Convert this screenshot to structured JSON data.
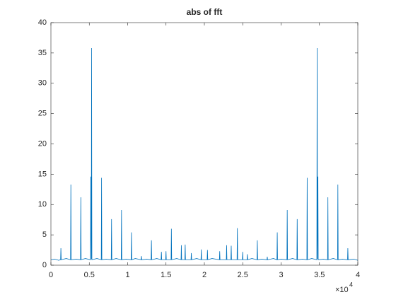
{
  "chart_data": {
    "type": "line",
    "title": "abs of fft",
    "x": [
      0,
      0.05,
      0.1,
      0.126,
      0.13,
      0.134,
      0.2,
      0.256,
      0.26,
      0.264,
      0.33,
      0.386,
      0.39,
      0.394,
      0.45,
      0.516,
      0.52,
      0.526,
      0.53,
      0.534,
      0.6,
      0.656,
      0.66,
      0.664,
      0.72,
      0.786,
      0.79,
      0.794,
      0.85,
      0.916,
      0.92,
      0.924,
      0.98,
      1.046,
      1.05,
      1.054,
      1.1,
      1.176,
      1.18,
      1.184,
      1.25,
      1.306,
      1.31,
      1.314,
      1.38,
      1.436,
      1.44,
      1.444,
      1.496,
      1.5,
      1.504,
      1.566,
      1.57,
      1.574,
      1.64,
      1.696,
      1.7,
      1.704,
      1.746,
      1.75,
      1.754,
      1.826,
      1.83,
      1.834,
      1.9,
      1.956,
      1.96,
      1.964,
      2.036,
      2.04,
      2.044,
      2.1,
      2.196,
      2.2,
      2.204,
      2.286,
      2.29,
      2.294,
      2.346,
      2.35,
      2.354,
      2.426,
      2.43,
      2.434,
      2.496,
      2.5,
      2.504,
      2.556,
      2.56,
      2.564,
      2.62,
      2.686,
      2.69,
      2.694,
      2.75,
      2.816,
      2.82,
      2.824,
      2.9,
      2.946,
      2.95,
      2.954,
      3.0,
      3.076,
      3.08,
      3.084,
      3.15,
      3.206,
      3.21,
      3.214,
      3.28,
      3.336,
      3.34,
      3.344,
      3.4,
      3.466,
      3.47,
      3.474,
      3.48,
      3.484,
      3.55,
      3.606,
      3.61,
      3.614,
      3.68,
      3.736,
      3.74,
      3.744,
      3.8,
      3.866,
      3.87,
      3.874,
      3.95,
      4
    ],
    "series": [
      {
        "color": "#0072bd",
        "values": [
          0.9,
          1.0,
          0.8,
          0.9,
          2.8,
          0.9,
          1.1,
          0.9,
          13.3,
          0.9,
          1.0,
          0.9,
          11.2,
          0.9,
          1.1,
          0.9,
          14.6,
          1.0,
          35.8,
          0.9,
          1.1,
          0.9,
          14.4,
          0.9,
          1.0,
          0.9,
          7.6,
          0.9,
          1.1,
          0.9,
          9.1,
          0.9,
          1.0,
          0.9,
          5.4,
          0.9,
          1.1,
          0.9,
          1.5,
          0.9,
          1.0,
          0.9,
          4.1,
          0.9,
          1.1,
          0.9,
          2.2,
          0.9,
          0.9,
          2.3,
          0.9,
          0.9,
          6.0,
          0.9,
          1.1,
          0.9,
          3.3,
          0.9,
          0.9,
          3.4,
          0.9,
          0.9,
          2.0,
          0.9,
          1.1,
          0.9,
          2.6,
          0.9,
          0.9,
          2.5,
          0.9,
          1.1,
          0.9,
          2.3,
          0.9,
          0.9,
          3.3,
          0.9,
          0.9,
          3.2,
          0.9,
          0.9,
          6.1,
          0.9,
          0.9,
          2.2,
          0.9,
          0.9,
          1.8,
          0.9,
          1.1,
          0.9,
          4.1,
          0.9,
          1.0,
          0.9,
          1.4,
          0.9,
          1.1,
          0.9,
          5.4,
          0.9,
          1.0,
          0.9,
          9.1,
          0.9,
          1.1,
          0.9,
          7.6,
          0.9,
          1.0,
          0.9,
          14.4,
          0.9,
          1.1,
          0.9,
          35.8,
          1.0,
          14.6,
          0.9,
          1.0,
          0.9,
          11.2,
          0.9,
          1.1,
          0.9,
          13.3,
          0.9,
          1.0,
          0.9,
          2.8,
          0.9,
          1.0,
          0.8
        ]
      }
    ],
    "xlim": [
      0,
      4
    ],
    "xticks": [
      0,
      0.5,
      1,
      1.5,
      2,
      2.5,
      3,
      3.5,
      4
    ],
    "x_exponent": {
      "base": "×10",
      "power": "4"
    },
    "ylim": [
      0,
      40
    ],
    "yticks": [
      0,
      5,
      10,
      15,
      20,
      25,
      30,
      35,
      40
    ]
  }
}
